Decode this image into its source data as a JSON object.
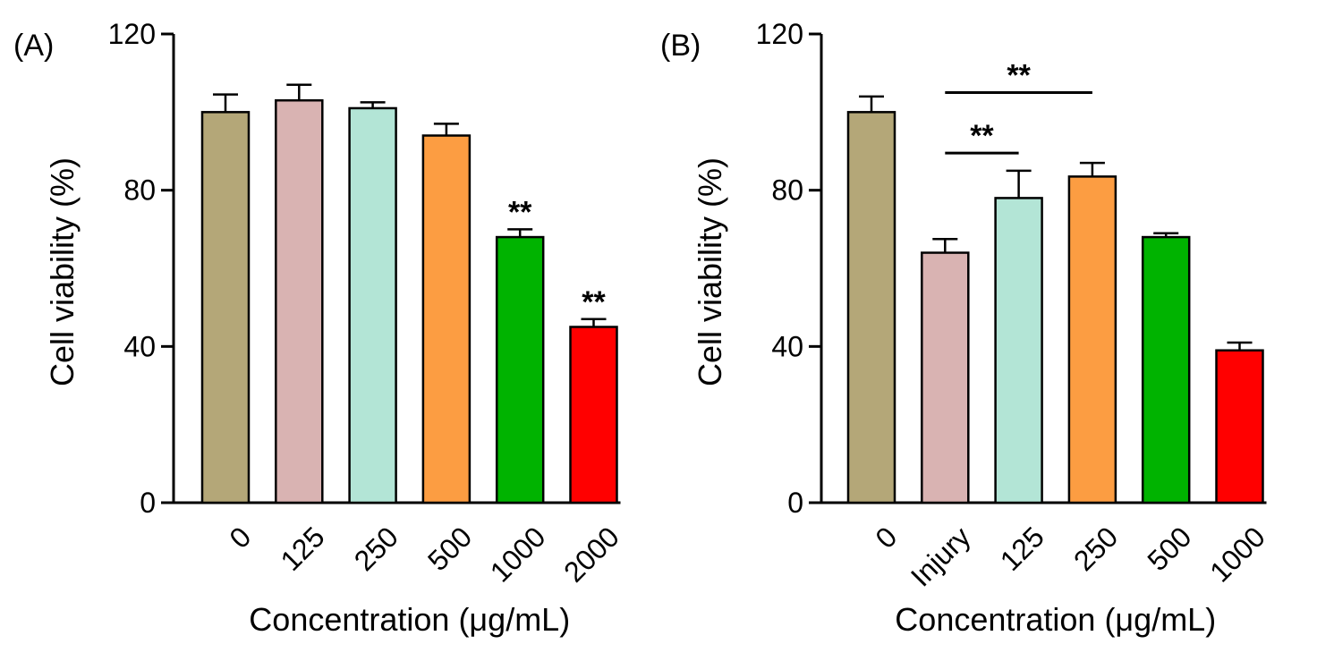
{
  "chart_data": [
    {
      "type": "bar",
      "panel_label": "(A)",
      "categories": [
        "0",
        "125",
        "250",
        "500",
        "1000",
        "2000"
      ],
      "values": [
        100,
        103,
        101,
        94,
        68,
        45
      ],
      "errors": [
        4.5,
        4,
        1.5,
        3,
        2,
        2
      ],
      "colors": [
        "#b4a778",
        "#d9b3b2",
        "#b3e5d6",
        "#fc9d42",
        "#00b300",
        "#ff0000"
      ],
      "significance": [
        null,
        null,
        null,
        null,
        "**",
        "**"
      ],
      "brackets": [],
      "xlabel": "Concentration (μg/mL)",
      "ylabel": "Cell viability (%)",
      "ylim": [
        0,
        120
      ],
      "yticks": [
        "0",
        "40",
        "80",
        "120"
      ],
      "grid": false
    },
    {
      "type": "bar",
      "panel_label": "(B)",
      "categories": [
        "0",
        "Injury",
        "125",
        "250",
        "500",
        "1000"
      ],
      "values": [
        100,
        64,
        78,
        83.5,
        68,
        39
      ],
      "errors": [
        4,
        3.5,
        7,
        3.5,
        1,
        2
      ],
      "colors": [
        "#b4a778",
        "#d9b3b2",
        "#b3e5d6",
        "#fc9d42",
        "#00b300",
        "#ff0000"
      ],
      "significance": [
        null,
        null,
        null,
        null,
        null,
        null
      ],
      "brackets": [
        {
          "from": 1,
          "to": 2,
          "label": "**",
          "y": 89.5
        },
        {
          "from": 1,
          "to": 3,
          "label": "**",
          "y": 105
        }
      ],
      "xlabel": "Concentration (μg/mL)",
      "ylabel": "Cell viability (%)",
      "ylim": [
        0,
        120
      ],
      "yticks": [
        "0",
        "40",
        "80",
        "120"
      ],
      "grid": false
    }
  ]
}
